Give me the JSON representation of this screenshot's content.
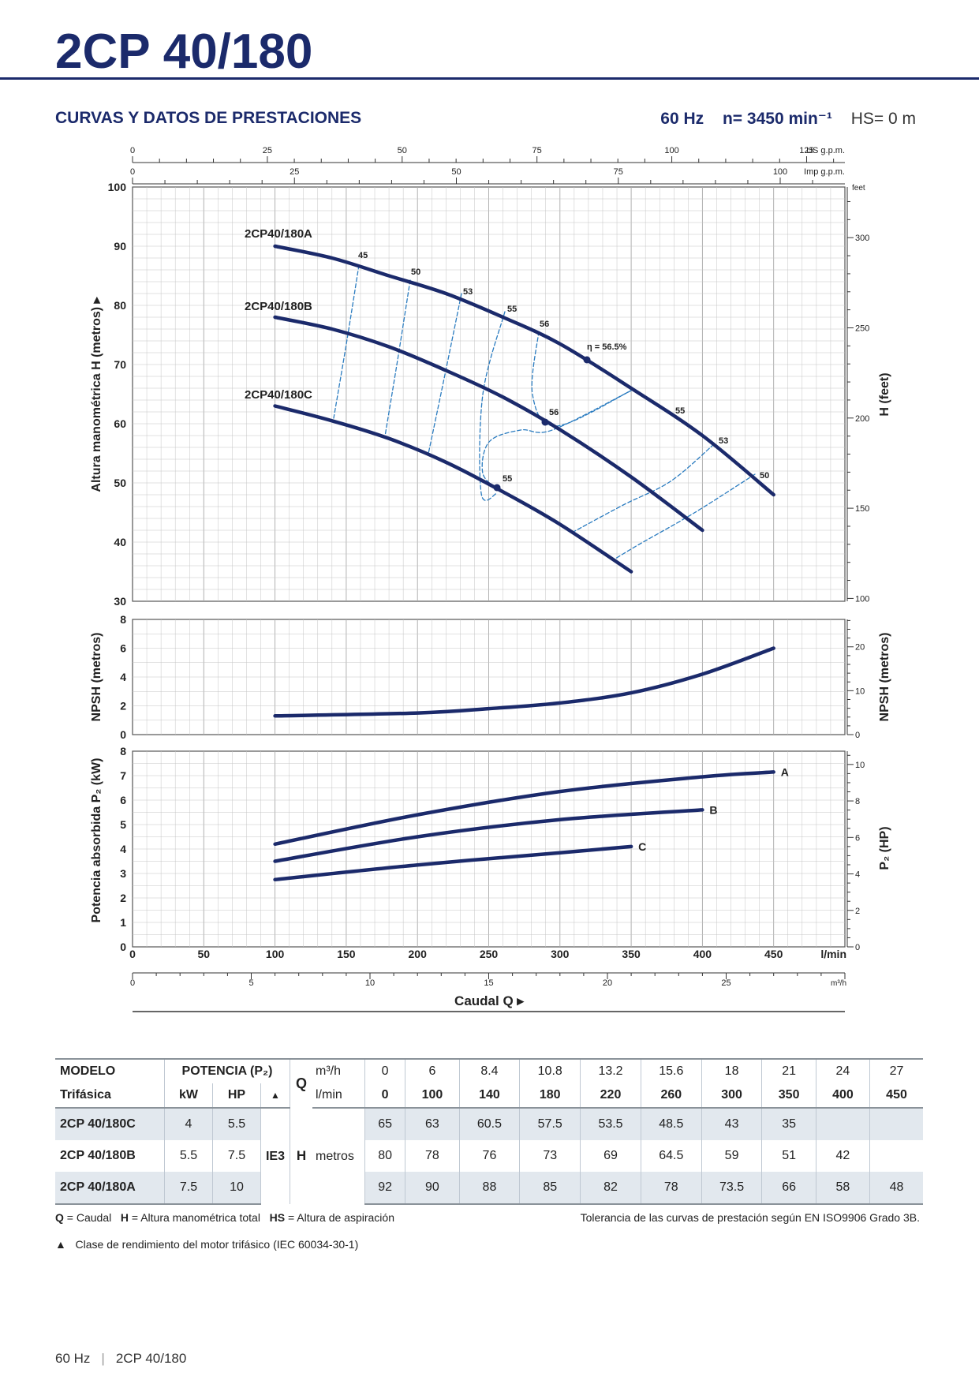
{
  "page": {
    "title": "2CP 40/180",
    "section": "CURVAS Y DATOS DE PRESTACIONES",
    "freq": "60 Hz",
    "speed": "n= 3450 min⁻¹",
    "hs": "HS= 0 m"
  },
  "chart_data": {
    "type": "line",
    "x_unit": "l/min",
    "xlim": [
      0,
      500
    ],
    "x_ticks": [
      "0",
      "50",
      "100",
      "150",
      "200",
      "250",
      "300",
      "350",
      "400",
      "450"
    ],
    "x_label": "Caudal Q",
    "x_m3h_ticks": [
      "0",
      "5",
      "10",
      "15",
      "20",
      "25"
    ],
    "x_m3h_unit": "m³/h",
    "x_us_ticks": [
      "0",
      "25",
      "50",
      "75",
      "100",
      "125"
    ],
    "x_us_unit": "US g.p.m.",
    "x_imp_ticks": [
      "0",
      "25",
      "50",
      "75",
      "100"
    ],
    "x_imp_unit": "Imp g.p.m.",
    "head": {
      "ylabel": "Altura manométrica H (metros)",
      "ylim": [
        30,
        100
      ],
      "y_ticks": [
        "30",
        "40",
        "50",
        "60",
        "70",
        "80",
        "90",
        "100"
      ],
      "right_label": "H (feet)",
      "right_unit": "feet",
      "right_ticks": [
        "100",
        "150",
        "200",
        "250",
        "300"
      ],
      "series": [
        {
          "name": "2CP40/180A",
          "x": [
            100,
            140,
            180,
            220,
            260,
            300,
            350,
            400,
            450
          ],
          "y": [
            90,
            88,
            85,
            82,
            78,
            73.5,
            66,
            58,
            48
          ]
        },
        {
          "name": "2CP40/180B",
          "x": [
            100,
            140,
            180,
            220,
            260,
            300,
            350,
            400
          ],
          "y": [
            78,
            76,
            73,
            69,
            64.5,
            59,
            51,
            42
          ]
        },
        {
          "name": "2CP40/180C",
          "x": [
            100,
            140,
            180,
            220,
            260,
            300,
            350
          ],
          "y": [
            63,
            60.5,
            57.5,
            53.5,
            48.5,
            43,
            35
          ]
        }
      ],
      "efficiency_labels": [
        "45",
        "50",
        "53",
        "55",
        "56",
        "η = 56.5%",
        "56",
        "55",
        "53",
        "50",
        "55"
      ]
    },
    "npsh": {
      "ylabel": "NPSH (metros)",
      "ylim": [
        0,
        8
      ],
      "y_ticks": [
        "0",
        "2",
        "4",
        "6",
        "8"
      ],
      "right_label": "NPSH (metros)",
      "right_ticks": [
        "0",
        "10",
        "20"
      ],
      "series": [
        {
          "name": "NPSH",
          "x": [
            100,
            200,
            250,
            300,
            350,
            400,
            450
          ],
          "y": [
            1.3,
            1.5,
            1.8,
            2.2,
            2.9,
            4.2,
            6
          ]
        }
      ]
    },
    "power": {
      "ylabel": "Potencia absorbida P₂ (kW)",
      "ylim": [
        0,
        8
      ],
      "y_ticks": [
        "0",
        "1",
        "2",
        "3",
        "4",
        "5",
        "6",
        "7",
        "8"
      ],
      "right_label": "P₂ (HP)",
      "right_ticks": [
        "0",
        "2",
        "4",
        "6",
        "8",
        "10"
      ],
      "series": [
        {
          "name": "A",
          "x": [
            100,
            200,
            300,
            400,
            450
          ],
          "y": [
            4.2,
            5.4,
            6.35,
            6.95,
            7.15
          ]
        },
        {
          "name": "B",
          "x": [
            100,
            200,
            300,
            400
          ],
          "y": [
            3.5,
            4.5,
            5.2,
            5.6
          ]
        },
        {
          "name": "C",
          "x": [
            100,
            200,
            300,
            350
          ],
          "y": [
            2.75,
            3.35,
            3.85,
            4.1
          ]
        }
      ]
    }
  },
  "table": {
    "h1": [
      "MODELO",
      "POTENCIA (P₂)",
      "Q",
      "m³/h"
    ],
    "h2": [
      "Trifásica",
      "kW",
      "HP",
      "▲",
      "l/min"
    ],
    "q_m3h": [
      "0",
      "6",
      "8.4",
      "10.8",
      "13.2",
      "15.6",
      "18",
      "21",
      "24",
      "27"
    ],
    "q_lmin": [
      "0",
      "100",
      "140",
      "180",
      "220",
      "260",
      "300",
      "350",
      "400",
      "450"
    ],
    "ie": "IE3",
    "h_label": "H",
    "h_unit": "metros",
    "rows": [
      {
        "model": "2CP 40/180C",
        "kw": "4",
        "hp": "5.5",
        "h": [
          "65",
          "63",
          "60.5",
          "57.5",
          "53.5",
          "48.5",
          "43",
          "35",
          "",
          ""
        ]
      },
      {
        "model": "2CP 40/180B",
        "kw": "5.5",
        "hp": "7.5",
        "h": [
          "80",
          "78",
          "76",
          "73",
          "69",
          "64.5",
          "59",
          "51",
          "42",
          ""
        ]
      },
      {
        "model": "2CP 40/180A",
        "kw": "7.5",
        "hp": "10",
        "h": [
          "92",
          "90",
          "88",
          "85",
          "82",
          "78",
          "73.5",
          "66",
          "58",
          "48"
        ]
      }
    ]
  },
  "notes": {
    "q": "Q",
    "q_text": " = Caudal",
    "h": "H",
    "h_text": " = Altura manométrica total",
    "hs": "HS",
    "hs_text": " = Altura de aspiración",
    "tolerance": "Tolerancia de las curvas de prestación según EN ISO9906 Grado 3B.",
    "triangle": "▲",
    "triangle_text": "Clase de rendimiento del motor trifásico (IEC 60034-30-1)"
  },
  "footer": {
    "freq": "60 Hz",
    "sep": "|",
    "model": "2CP 40/180"
  },
  "colors": {
    "curve": "#1b2a6b",
    "efficiency": "#2b7cc0",
    "grid": "#c4c4c4",
    "title": "#1b2a6b"
  }
}
